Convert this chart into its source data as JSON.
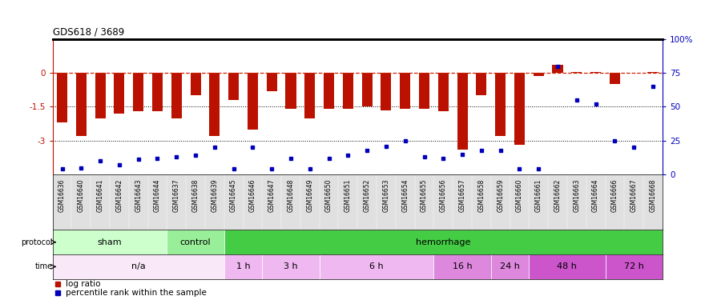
{
  "title": "GDS618 / 3689",
  "samples": [
    "GSM16636",
    "GSM16640",
    "GSM16641",
    "GSM16642",
    "GSM16643",
    "GSM16644",
    "GSM16637",
    "GSM16638",
    "GSM16639",
    "GSM16645",
    "GSM16646",
    "GSM16647",
    "GSM16648",
    "GSM16649",
    "GSM16650",
    "GSM16651",
    "GSM16652",
    "GSM16653",
    "GSM16654",
    "GSM16655",
    "GSM16656",
    "GSM16657",
    "GSM16658",
    "GSM16659",
    "GSM16660",
    "GSM16661",
    "GSM16662",
    "GSM16663",
    "GSM16664",
    "GSM16666",
    "GSM16667",
    "GSM16668"
  ],
  "log_ratio": [
    -2.2,
    -2.8,
    -2.0,
    -1.8,
    -1.7,
    -1.7,
    -2.0,
    -1.0,
    -2.8,
    -1.2,
    -2.5,
    -0.8,
    -1.6,
    -2.0,
    -1.6,
    -1.6,
    -1.5,
    -1.65,
    -1.6,
    -1.6,
    -1.7,
    -3.4,
    -1.0,
    -2.8,
    -3.2,
    -0.15,
    0.35,
    0.05,
    0.05,
    -0.5,
    0.0,
    0.05
  ],
  "percentile": [
    4,
    5,
    10,
    7,
    11,
    12,
    13,
    14,
    20,
    4,
    20,
    4,
    12,
    4,
    12,
    14,
    18,
    21,
    25,
    13,
    12,
    15,
    18,
    18,
    4,
    4,
    80,
    55,
    52,
    25,
    20,
    65
  ],
  "protocol_groups": [
    {
      "label": "sham",
      "start": 0,
      "end": 5,
      "color": "#ccffcc"
    },
    {
      "label": "control",
      "start": 6,
      "end": 8,
      "color": "#99ee99"
    },
    {
      "label": "hemorrhage",
      "start": 9,
      "end": 31,
      "color": "#44cc44"
    }
  ],
  "time_groups": [
    {
      "label": "n/a",
      "start": 0,
      "end": 8,
      "color": "#f8e8f8"
    },
    {
      "label": "1 h",
      "start": 9,
      "end": 10,
      "color": "#f0b8f0"
    },
    {
      "label": "3 h",
      "start": 11,
      "end": 13,
      "color": "#f0b8f0"
    },
    {
      "label": "6 h",
      "start": 14,
      "end": 19,
      "color": "#f0b8f0"
    },
    {
      "label": "16 h",
      "start": 20,
      "end": 22,
      "color": "#dd88dd"
    },
    {
      "label": "24 h",
      "start": 23,
      "end": 24,
      "color": "#dd88dd"
    },
    {
      "label": "48 h",
      "start": 25,
      "end": 28,
      "color": "#cc55cc"
    },
    {
      "label": "72 h",
      "start": 29,
      "end": 31,
      "color": "#cc55cc"
    }
  ],
  "ylim_left": [
    -4.5,
    1.5
  ],
  "ylim_right": [
    0,
    100
  ],
  "bar_color": "#bb1100",
  "dot_color": "#0000bb",
  "zero_line_color": "#cc2200",
  "left_yticks": [
    0,
    -1.5,
    -3.0
  ],
  "left_yticklabels": [
    "0",
    "-1.5",
    "-3"
  ],
  "right_yticks": [
    0,
    25,
    50,
    75,
    100
  ],
  "right_yticklabels": [
    "0",
    "25",
    "50",
    "75",
    "100%"
  ]
}
